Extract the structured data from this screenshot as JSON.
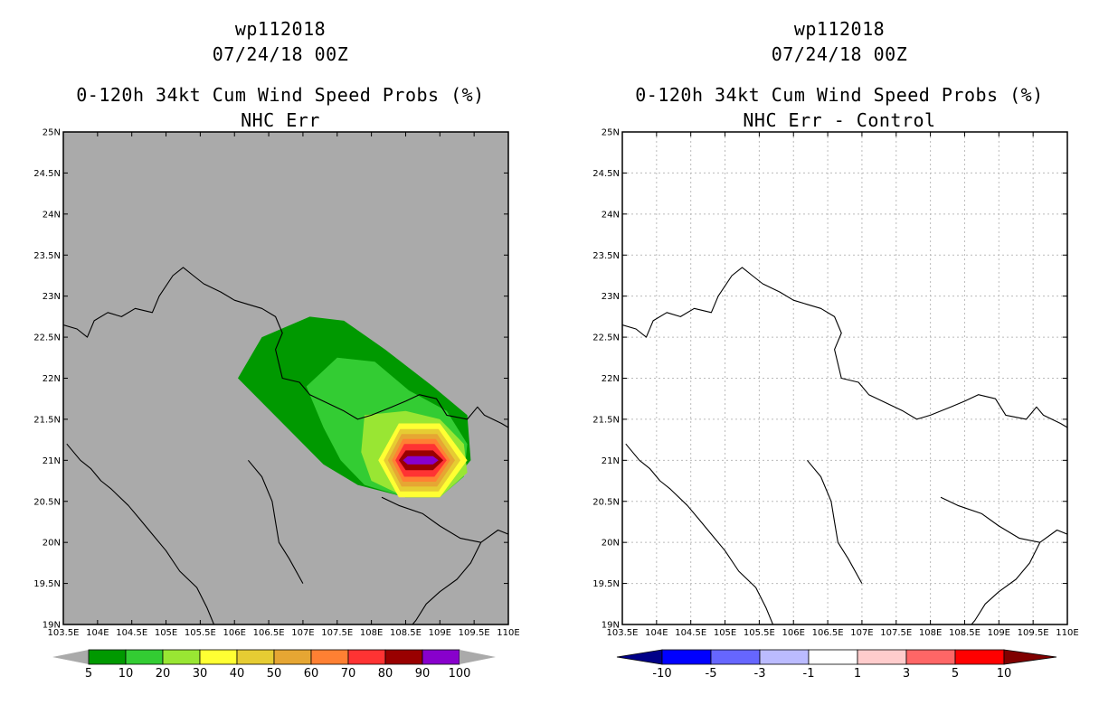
{
  "colors": {
    "land_fill": "#aaaaaa",
    "prob_fills": [
      "#009900",
      "#33cc33",
      "#99e633",
      "#ffff33",
      "#e6cc33",
      "#e6a633",
      "#ff8033",
      "#ff3333",
      "#990000",
      "#8800cc"
    ],
    "diff_fills": [
      "#000088",
      "#0000ff",
      "#6666ff",
      "#bbbbff",
      "#ffffff",
      "#ffcccc",
      "#ff6666",
      "#ff0000",
      "#800000"
    ]
  },
  "chart_data": [
    {
      "type": "contour-map",
      "title_lines": [
        "wp112018",
        "07/24/18 00Z",
        "0-120h 34kt Cum Wind Speed Probs (%)",
        "NHC Err"
      ],
      "xlim": [
        103.5,
        110.0
      ],
      "ylim": [
        19.0,
        25.0
      ],
      "x_ticks": [
        "103.5E",
        "104E",
        "104.5E",
        "105E",
        "105.5E",
        "106E",
        "106.5E",
        "107E",
        "107.5E",
        "108E",
        "108.5E",
        "109E",
        "109.5E",
        "110E"
      ],
      "y_ticks": [
        "19N",
        "19.5N",
        "20N",
        "20.5N",
        "21N",
        "21.5N",
        "22N",
        "22.5N",
        "23N",
        "23.5N",
        "24N",
        "24.5N",
        "25N"
      ],
      "grid": false,
      "background": "gray land/sea",
      "probability_contours": [
        {
          "level": 5,
          "polygon": [
            [
              106.05,
              22.0
            ],
            [
              106.4,
              22.5
            ],
            [
              107.1,
              22.75
            ],
            [
              107.6,
              22.7
            ],
            [
              108.2,
              22.35
            ],
            [
              108.9,
              21.9
            ],
            [
              109.4,
              21.55
            ],
            [
              109.45,
              21.0
            ],
            [
              109.0,
              20.55
            ],
            [
              108.5,
              20.55
            ],
            [
              107.8,
              20.7
            ],
            [
              107.3,
              20.95
            ]
          ]
        },
        {
          "level": 10,
          "polygon": [
            [
              107.05,
              21.9
            ],
            [
              107.5,
              22.25
            ],
            [
              108.05,
              22.2
            ],
            [
              108.55,
              21.85
            ],
            [
              109.1,
              21.6
            ],
            [
              109.4,
              21.2
            ],
            [
              109.35,
              20.8
            ],
            [
              109.0,
              20.55
            ],
            [
              108.5,
              20.55
            ],
            [
              107.9,
              20.7
            ],
            [
              107.55,
              21.0
            ],
            [
              107.3,
              21.4
            ]
          ]
        },
        {
          "level": 20,
          "polygon": [
            [
              107.9,
              21.55
            ],
            [
              108.5,
              21.6
            ],
            [
              109.0,
              21.5
            ],
            [
              109.35,
              21.2
            ],
            [
              109.4,
              20.85
            ],
            [
              109.0,
              20.55
            ],
            [
              108.5,
              20.55
            ],
            [
              108.0,
              20.75
            ],
            [
              107.85,
              21.1
            ]
          ]
        },
        {
          "level": 30,
          "polygon": [
            [
              108.4,
              21.45
            ],
            [
              109.0,
              21.45
            ],
            [
              109.4,
              21.0
            ],
            [
              109.0,
              20.55
            ],
            [
              108.4,
              20.55
            ],
            [
              108.1,
              21.0
            ]
          ]
        },
        {
          "level": 40,
          "polygon": [
            [
              108.42,
              21.38
            ],
            [
              108.98,
              21.38
            ],
            [
              109.3,
              21.0
            ],
            [
              108.98,
              20.62
            ],
            [
              108.42,
              20.62
            ],
            [
              108.18,
              21.0
            ]
          ]
        },
        {
          "level": 50,
          "polygon": [
            [
              108.44,
              21.32
            ],
            [
              108.96,
              21.32
            ],
            [
              109.22,
              21.0
            ],
            [
              108.96,
              20.68
            ],
            [
              108.44,
              20.68
            ],
            [
              108.24,
              21.0
            ]
          ]
        },
        {
          "level": 60,
          "polygon": [
            [
              108.46,
              21.26
            ],
            [
              108.94,
              21.26
            ],
            [
              109.15,
              21.0
            ],
            [
              108.94,
              20.74
            ],
            [
              108.46,
              20.74
            ],
            [
              108.3,
              21.0
            ]
          ]
        },
        {
          "level": 70,
          "polygon": [
            [
              108.48,
              21.2
            ],
            [
              108.92,
              21.2
            ],
            [
              109.1,
              21.0
            ],
            [
              108.92,
              20.8
            ],
            [
              108.48,
              20.8
            ],
            [
              108.35,
              21.0
            ]
          ]
        },
        {
          "level": 80,
          "polygon": [
            [
              108.5,
              21.12
            ],
            [
              108.9,
              21.12
            ],
            [
              109.05,
              21.0
            ],
            [
              108.9,
              20.88
            ],
            [
              108.5,
              20.88
            ],
            [
              108.4,
              21.0
            ]
          ]
        },
        {
          "level": 90,
          "polygon": [
            [
              108.53,
              21.05
            ],
            [
              108.9,
              21.05
            ],
            [
              108.98,
              21.0
            ],
            [
              108.9,
              20.95
            ],
            [
              108.53,
              20.95
            ],
            [
              108.46,
              21.0
            ]
          ]
        }
      ],
      "colorbar": {
        "labels": [
          "5",
          "10",
          "20",
          "30",
          "40",
          "50",
          "60",
          "70",
          "80",
          "90",
          "100"
        ]
      }
    },
    {
      "type": "contour-map",
      "title_lines": [
        "wp112018",
        "07/24/18 00Z",
        "0-120h 34kt Cum Wind Speed Probs (%)",
        "NHC Err - Control"
      ],
      "xlim": [
        103.5,
        110.0
      ],
      "ylim": [
        19.0,
        25.0
      ],
      "x_ticks": [
        "103.5E",
        "104E",
        "104.5E",
        "105E",
        "105.5E",
        "106E",
        "106.5E",
        "107E",
        "107.5E",
        "108E",
        "108.5E",
        "109E",
        "109.5E",
        "110E"
      ],
      "y_ticks": [
        "19N",
        "19.5N",
        "20N",
        "20.5N",
        "21N",
        "21.5N",
        "22N",
        "22.5N",
        "23N",
        "23.5N",
        "24N",
        "24.5N",
        "25N"
      ],
      "grid": true,
      "background": "white (all differences between -1 and 1)",
      "colorbar": {
        "labels": [
          "-10",
          "-5",
          "-3",
          "-1",
          "1",
          "3",
          "5",
          "10"
        ]
      }
    }
  ],
  "coastlines": [
    [
      [
        103.5,
        22.65
      ],
      [
        103.7,
        22.6
      ],
      [
        103.85,
        22.5
      ],
      [
        103.95,
        22.7
      ],
      [
        104.15,
        22.8
      ],
      [
        104.35,
        22.75
      ],
      [
        104.55,
        22.85
      ],
      [
        104.8,
        22.8
      ],
      [
        104.9,
        23.0
      ],
      [
        105.1,
        23.25
      ],
      [
        105.25,
        23.35
      ],
      [
        105.4,
        23.25
      ],
      [
        105.55,
        23.15
      ],
      [
        105.8,
        23.05
      ],
      [
        106.0,
        22.95
      ],
      [
        106.2,
        22.9
      ],
      [
        106.4,
        22.85
      ],
      [
        106.6,
        22.75
      ],
      [
        106.7,
        22.55
      ],
      [
        106.6,
        22.35
      ],
      [
        106.7,
        22.0
      ],
      [
        106.95,
        21.95
      ],
      [
        107.1,
        21.8
      ],
      [
        107.35,
        21.7
      ],
      [
        107.6,
        21.6
      ],
      [
        107.8,
        21.5
      ],
      [
        108.0,
        21.55
      ],
      [
        108.3,
        21.65
      ],
      [
        108.5,
        21.72
      ],
      [
        108.7,
        21.8
      ],
      [
        108.95,
        21.75
      ],
      [
        109.1,
        21.55
      ],
      [
        109.4,
        21.5
      ],
      [
        109.55,
        21.65
      ],
      [
        109.65,
        21.55
      ],
      [
        109.9,
        21.45
      ],
      [
        110.0,
        21.4
      ]
    ],
    [
      [
        103.55,
        21.2
      ],
      [
        103.75,
        21.0
      ],
      [
        103.9,
        20.9
      ],
      [
        104.05,
        20.75
      ],
      [
        104.2,
        20.65
      ],
      [
        104.45,
        20.45
      ],
      [
        104.6,
        20.3
      ],
      [
        104.8,
        20.1
      ],
      [
        105.0,
        19.9
      ],
      [
        105.2,
        19.65
      ],
      [
        105.45,
        19.45
      ],
      [
        105.6,
        19.2
      ],
      [
        105.7,
        19.0
      ]
    ],
    [
      [
        106.2,
        21.0
      ],
      [
        106.4,
        20.8
      ],
      [
        106.55,
        20.5
      ],
      [
        106.6,
        20.25
      ],
      [
        106.65,
        20.0
      ],
      [
        106.8,
        19.8
      ],
      [
        107.0,
        19.5
      ]
    ],
    [
      [
        108.15,
        20.55
      ],
      [
        108.4,
        20.45
      ],
      [
        108.75,
        20.35
      ],
      [
        109.0,
        20.2
      ],
      [
        109.3,
        20.05
      ],
      [
        109.6,
        20.0
      ],
      [
        109.85,
        20.15
      ],
      [
        110.0,
        20.1
      ]
    ],
    [
      [
        109.6,
        20.0
      ],
      [
        109.45,
        19.75
      ],
      [
        109.25,
        19.55
      ],
      [
        109.0,
        19.4
      ],
      [
        108.8,
        19.25
      ],
      [
        108.65,
        19.05
      ],
      [
        108.6,
        19.0
      ]
    ]
  ]
}
